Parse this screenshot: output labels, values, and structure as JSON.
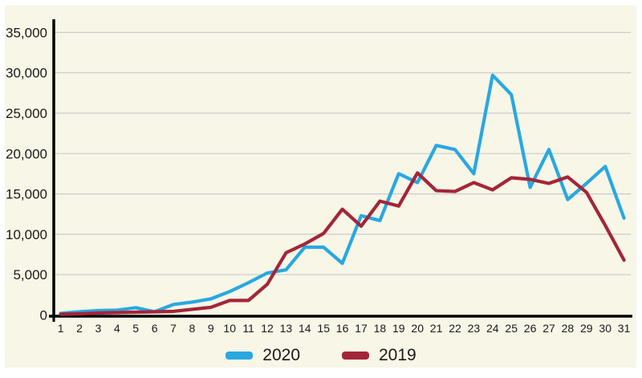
{
  "chart_data": {
    "type": "line",
    "title": "",
    "xlabel": "",
    "ylabel": "",
    "categories": [
      "1",
      "2",
      "3",
      "4",
      "5",
      "6",
      "7",
      "8",
      "9",
      "10",
      "11",
      "12",
      "13",
      "14",
      "15",
      "16",
      "17",
      "18",
      "19",
      "20",
      "21",
      "22",
      "23",
      "24",
      "25",
      "26",
      "27",
      "28",
      "29",
      "30",
      "31"
    ],
    "series": [
      {
        "name": "2020",
        "color": "#29A8E0",
        "values": [
          200,
          400,
          550,
          600,
          900,
          400,
          1300,
          1600,
          2000,
          2900,
          4000,
          5200,
          5600,
          8400,
          8400,
          6400,
          12300,
          11700,
          17500,
          16400,
          21000,
          20500,
          17500,
          29700,
          27300,
          15800,
          20500,
          14300,
          16300,
          18400,
          12000
        ]
      },
      {
        "name": "2019",
        "color": "#A32638",
        "values": [
          100,
          150,
          250,
          300,
          350,
          400,
          450,
          700,
          950,
          1800,
          1800,
          3800,
          7700,
          8800,
          10100,
          13100,
          11000,
          14100,
          13500,
          17600,
          15400,
          15300,
          16400,
          15500,
          17000,
          16800,
          16300,
          17100,
          15200,
          11100,
          6800
        ]
      }
    ],
    "ylim": [
      0,
      35000
    ],
    "ytick_interval": 5000,
    "ytick_labels": [
      "0",
      "5,000",
      "10,000",
      "15,000",
      "20,000",
      "25,000",
      "30,000",
      "35,000"
    ],
    "grid": true,
    "legend_position": "bottom"
  },
  "colors": {
    "background": "#F7F6E7",
    "grid": "#CBCBCB",
    "axis": "#000000",
    "text": "#1A1A1A"
  }
}
